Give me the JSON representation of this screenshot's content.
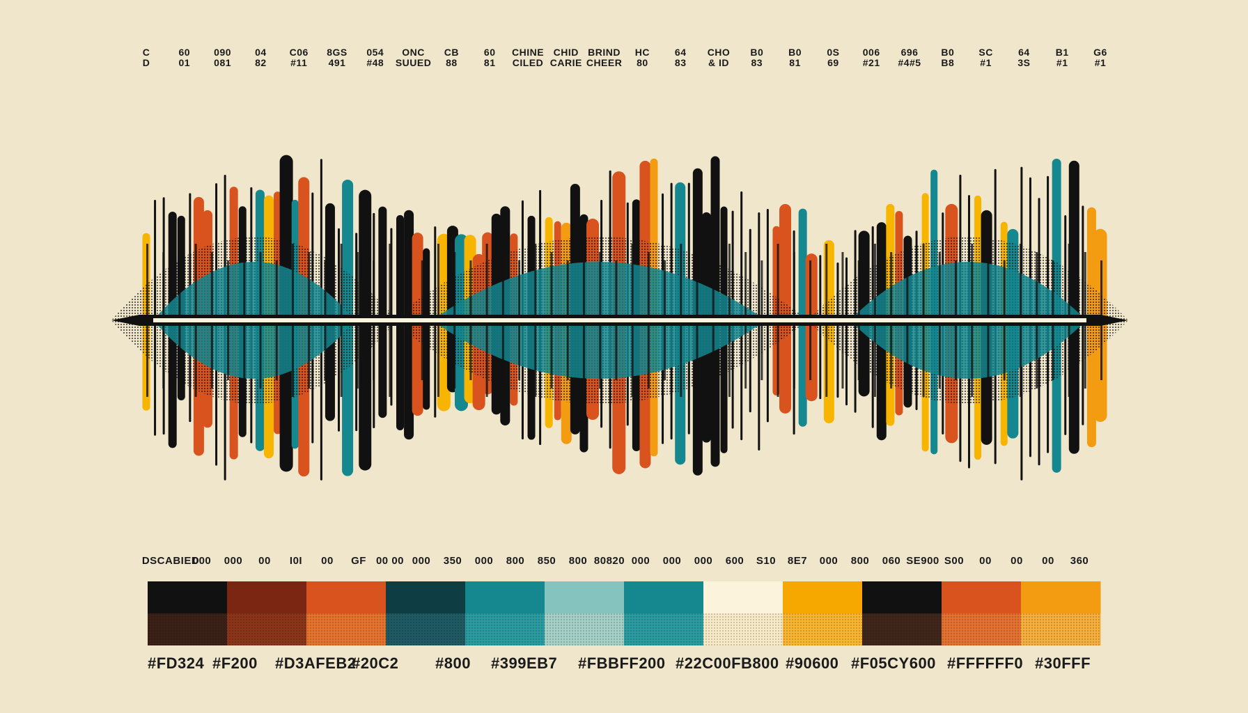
{
  "palette": {
    "background": "#efe6cc",
    "black": "#111111",
    "orange": "#d9531e",
    "amber": "#f39c12",
    "yellow": "#f7b500",
    "teal": "#15878f",
    "teal_dark": "#0e3d44",
    "teal_light": "#85c4be",
    "cream": "#fbf3dc"
  },
  "top_labels": [
    [
      "C",
      "D"
    ],
    [
      "60",
      "01"
    ],
    [
      "090",
      "081"
    ],
    [
      "04",
      "82"
    ],
    [
      "C06",
      "#11"
    ],
    [
      "8GS",
      "491"
    ],
    [
      "054",
      "#48"
    ],
    [
      "ONC",
      "SUUED"
    ],
    [
      "CB",
      "88"
    ],
    [
      "60",
      "81"
    ],
    [
      "CHINE",
      "CILED"
    ],
    [
      "CHID",
      "CARIE"
    ],
    [
      "BRIND",
      "CHEER"
    ],
    [
      "HC",
      "80"
    ],
    [
      "64",
      "83"
    ],
    [
      "CHO",
      "& ID"
    ],
    [
      "B0",
      "83"
    ],
    [
      "B0",
      "81"
    ],
    [
      "0S",
      "69"
    ],
    [
      "006",
      "#21"
    ],
    [
      "696",
      "#4#5"
    ],
    [
      "B0",
      "B8"
    ],
    [
      "SC",
      "#1"
    ],
    [
      "64",
      "3S"
    ],
    [
      "B1",
      "#1"
    ],
    [
      "G6",
      "#1"
    ]
  ],
  "bottom_labels": [
    "DSCABIED",
    "000",
    "000",
    "00",
    "I0I",
    "00",
    "GF",
    "00 00",
    "000",
    "350",
    "000",
    "800",
    "850",
    "800",
    "80820",
    "000",
    "000",
    "000",
    "600",
    "S10",
    "8E7",
    "000",
    "800",
    "060",
    "SE900",
    "S00",
    "00",
    "00",
    "00",
    "360"
  ],
  "swatches": [
    {
      "top": "#111111",
      "bottom": "#3a2016"
    },
    {
      "top": "#7a2612",
      "bottom": "#8a3519"
    },
    {
      "top": "#d9531e",
      "bottom": "#e4722d"
    },
    {
      "top": "#0e3d44",
      "bottom": "#1f5a62"
    },
    {
      "top": "#15878f",
      "bottom": "#2a9ba0"
    },
    {
      "top": "#85c4be",
      "bottom": "#a4d0c8"
    },
    {
      "top": "#15878f",
      "bottom": "#2a9ba0"
    },
    {
      "top": "#fbf3dc",
      "bottom": "#f7e8c6"
    },
    {
      "top": "#f7a800",
      "bottom": "#f7b531"
    },
    {
      "top": "#111111",
      "bottom": "#40261a"
    },
    {
      "top": "#d9531e",
      "bottom": "#e47030"
    },
    {
      "top": "#f39c12",
      "bottom": "#f6ae3c"
    }
  ],
  "hex_labels": [
    "#FD324",
    "#F200",
    "#D3AFEB2",
    "#20C2",
    "#800",
    "#399EB7",
    "#FBBFF200",
    "#22C00FB800",
    "#90600",
    "#F05CY600",
    "#FFFFFF0",
    "#30FFF"
  ]
}
